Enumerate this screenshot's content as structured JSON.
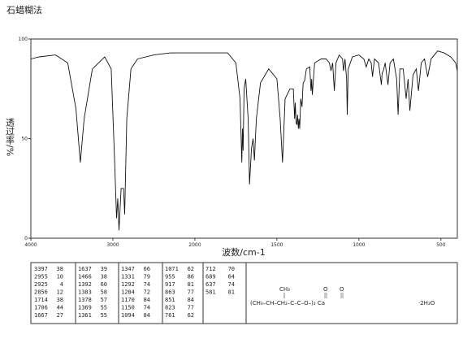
{
  "chart_data": {
    "type": "line",
    "title": "石蜡糊法",
    "x_label": "波数/cm-1",
    "y_label": "透过率/%",
    "xlim": [
      4000,
      400
    ],
    "x_scale_break": 2000,
    "xticks": [
      4000,
      3000,
      2000,
      1500,
      1000,
      500
    ],
    "ylim": [
      0,
      100
    ],
    "yticks": [
      0,
      50,
      100
    ],
    "color": "#111111",
    "x": [
      4000,
      3900,
      3700,
      3550,
      3450,
      3397,
      3350,
      3250,
      3100,
      3020,
      2980,
      2955,
      2940,
      2925,
      2900,
      2870,
      2856,
      2830,
      2780,
      2700,
      2500,
      2300,
      2100,
      1900,
      1800,
      1750,
      1725,
      1714,
      1710,
      1706,
      1700,
      1690,
      1675,
      1667,
      1655,
      1645,
      1637,
      1625,
      1600,
      1550,
      1500,
      1480,
      1466,
      1450,
      1420,
      1400,
      1392,
      1388,
      1383,
      1378,
      1374,
      1369,
      1365,
      1361,
      1355,
      1347,
      1340,
      1331,
      1320,
      1300,
      1292,
      1288,
      1284,
      1270,
      1230,
      1200,
      1180,
      1170,
      1160,
      1150,
      1140,
      1120,
      1100,
      1094,
      1085,
      1075,
      1071,
      1065,
      1040,
      1000,
      970,
      955,
      940,
      925,
      917,
      905,
      880,
      863,
      858,
      851,
      840,
      823,
      810,
      790,
      770,
      761,
      750,
      730,
      712,
      700,
      689,
      670,
      650,
      637,
      620,
      600,
      581,
      560,
      520,
      480,
      440,
      410,
      400
    ],
    "values": [
      90,
      91,
      92,
      88,
      65,
      38,
      60,
      85,
      91,
      85,
      40,
      10,
      20,
      4,
      25,
      25,
      12,
      60,
      85,
      90,
      92,
      93,
      93,
      93,
      93,
      88,
      70,
      38,
      55,
      44,
      75,
      80,
      60,
      27,
      45,
      50,
      39,
      60,
      78,
      85,
      80,
      60,
      38,
      70,
      75,
      75,
      60,
      68,
      58,
      57,
      62,
      55,
      60,
      55,
      70,
      66,
      78,
      79,
      85,
      86,
      74,
      80,
      72,
      88,
      90,
      90,
      88,
      84,
      88,
      74,
      88,
      92,
      90,
      84,
      90,
      80,
      62,
      85,
      91,
      92,
      90,
      86,
      90,
      88,
      81,
      90,
      88,
      77,
      83,
      84,
      88,
      77,
      88,
      90,
      80,
      62,
      85,
      85,
      70,
      80,
      64,
      82,
      85,
      74,
      88,
      90,
      81,
      90,
      94,
      93,
      91,
      88,
      84
    ],
    "peak_table": [
      [
        3397,
        38
      ],
      [
        2955,
        10
      ],
      [
        2925,
        4
      ],
      [
        2856,
        12
      ],
      [
        1714,
        38
      ],
      [
        1706,
        44
      ],
      [
        1667,
        27
      ],
      [
        1637,
        39
      ],
      [
        1466,
        38
      ],
      [
        1392,
        60
      ],
      [
        1383,
        58
      ],
      [
        1378,
        57
      ],
      [
        1369,
        55
      ],
      [
        1361,
        55
      ],
      [
        1347,
        66
      ],
      [
        1331,
        79
      ],
      [
        1292,
        74
      ],
      [
        1284,
        72
      ],
      [
        1170,
        84
      ],
      [
        1150,
        74
      ],
      [
        1094,
        84
      ],
      [
        1071,
        62
      ],
      [
        955,
        86
      ],
      [
        917,
        81
      ],
      [
        863,
        77
      ],
      [
        851,
        84
      ],
      [
        823,
        77
      ],
      [
        761,
        62
      ],
      [
        712,
        70
      ],
      [
        689,
        64
      ],
      [
        637,
        74
      ],
      [
        581,
        81
      ]
    ],
    "structure": {
      "branch": "CH₃",
      "oxygens": [
        "O",
        "O"
      ],
      "formula": "(CH₃–CH–CH₂–C–C–O–)₂ Ca",
      "hydrate": "·2H₂O"
    }
  }
}
